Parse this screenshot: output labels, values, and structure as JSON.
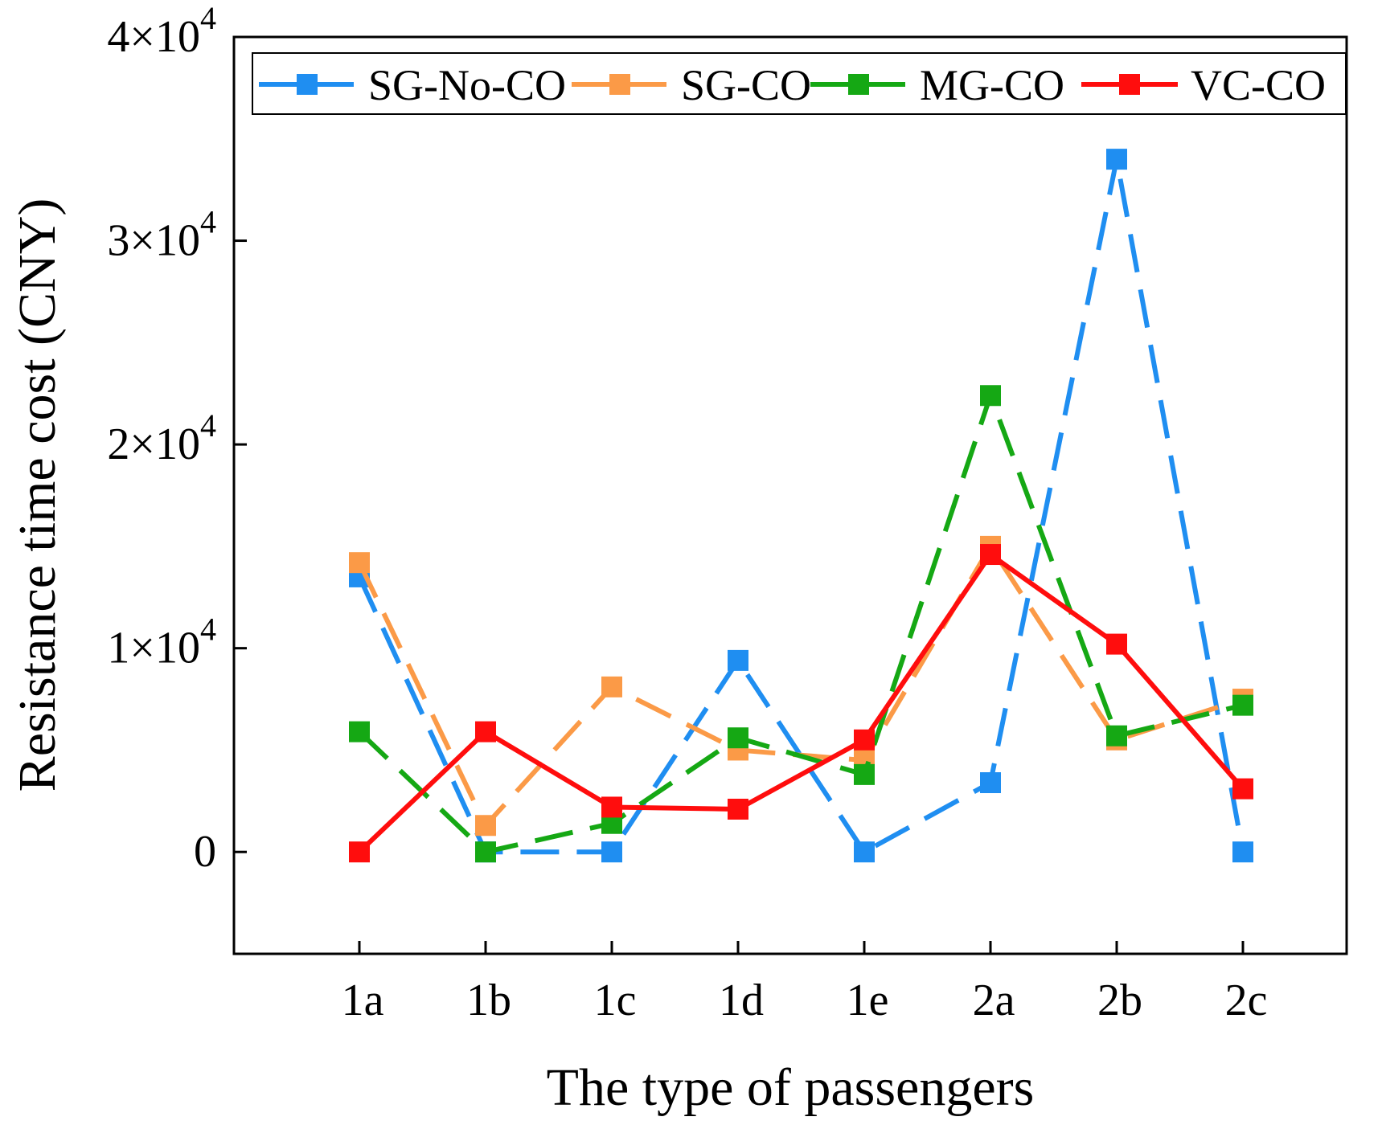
{
  "chart_data": {
    "type": "line",
    "categories": [
      "1a",
      "1b",
      "1c",
      "1d",
      "1e",
      "2a",
      "2b",
      "2c"
    ],
    "xlabel": "The type of passengers",
    "ylabel": "Resistance time cost (CNY)",
    "ylim": [
      -5000,
      40000
    ],
    "yticks": [
      0,
      10000,
      20000,
      30000,
      40000
    ],
    "ytick_labels": [
      {
        "value": 0,
        "mant": "0",
        "exp": ""
      },
      {
        "value": 10000,
        "mant": "1×10",
        "exp": "4"
      },
      {
        "value": 20000,
        "mant": "2×10",
        "exp": "4"
      },
      {
        "value": 30000,
        "mant": "3×10",
        "exp": "4"
      },
      {
        "value": 40000,
        "mant": "4×10",
        "exp": "4"
      }
    ],
    "legend_position": "top",
    "grid": false,
    "series": [
      {
        "name": "SG-No-CO",
        "color": "#1f8ef1",
        "style": "dashed",
        "values": [
          13500,
          0,
          0,
          9400,
          0,
          3400,
          34000,
          0
        ]
      },
      {
        "name": "SG-CO",
        "color": "#fb9a47",
        "style": "dashed",
        "values": [
          14200,
          1300,
          8100,
          5000,
          4500,
          15000,
          5500,
          7500
        ]
      },
      {
        "name": "MG-CO",
        "color": "#15a814",
        "style": "dashed",
        "values": [
          5900,
          0,
          1400,
          5600,
          3800,
          22400,
          5700,
          7200
        ]
      },
      {
        "name": "VC-CO",
        "color": "#ff0d0d",
        "style": "solid",
        "values": [
          0,
          5900,
          2200,
          2100,
          5500,
          14600,
          10200,
          3100
        ]
      }
    ]
  }
}
